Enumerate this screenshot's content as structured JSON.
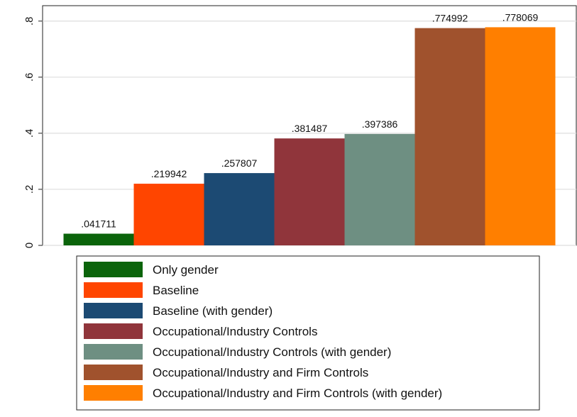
{
  "chart_data": {
    "type": "bar",
    "series": [
      {
        "name": "Only gender",
        "color": "#0b640b",
        "values": [
          0.041711
        ],
        "value_labels": [
          ".041711"
        ]
      },
      {
        "name": "Baseline",
        "color": "#ff4500",
        "values": [
          0.219942
        ],
        "value_labels": [
          ".219942"
        ]
      },
      {
        "name": "Baseline (with gender)",
        "color": "#1c4a73",
        "values": [
          0.257807
        ],
        "value_labels": [
          ".257807"
        ]
      },
      {
        "name": "Occupational/Industry Controls",
        "color": "#90353b",
        "values": [
          0.381487
        ],
        "value_labels": [
          ".381487"
        ]
      },
      {
        "name": "Occupational/Industry Controls (with gender)",
        "color": "#6e8f82",
        "values": [
          0.397386
        ],
        "value_labels": [
          ".397386"
        ]
      },
      {
        "name": "Occupational/Industry and Firm Controls",
        "color": "#a0522d",
        "values": [
          0.774992
        ],
        "value_labels": [
          ".774992"
        ]
      },
      {
        "name": "Occupational/Industry and Firm Controls (with gender)",
        "color": "#ff7f00",
        "values": [
          0.778069
        ],
        "value_labels": [
          ".778069"
        ]
      }
    ],
    "ylim": [
      0,
      0.855
    ],
    "yticks": [
      0,
      {
        "value": 0.2,
        "label": ".2"
      },
      {
        "value": 0.4,
        "label": ".4"
      },
      {
        "value": 0.6,
        "label": ".6"
      },
      {
        "value": 0.8,
        "label": ".8"
      }
    ],
    "grid": true,
    "legend": "bottom"
  }
}
